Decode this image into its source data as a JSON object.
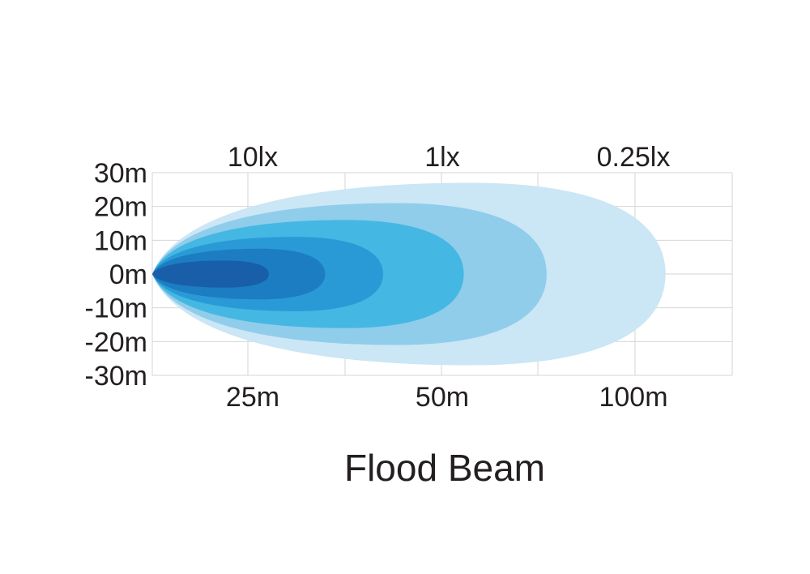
{
  "chart_data": {
    "type": "area",
    "title": "Flood Beam",
    "y_tick_labels": [
      "30m",
      "20m",
      "10m",
      "0m",
      "-10m",
      "-20m",
      "-30m"
    ],
    "x_tick_labels": [
      "25m",
      "50m",
      "100m"
    ],
    "lux_labels": [
      "10lx",
      "1lx",
      "0.25lx"
    ],
    "grid": true,
    "colors": {
      "grid": "#d6d6d6",
      "text": "#231f20",
      "background": "#ffffff"
    },
    "series": [
      {
        "reach_x_frac": 0.885,
        "half_width_m": 27,
        "color": "#cbe6f5"
      },
      {
        "reach_x_frac": 0.68,
        "half_width_m": 21,
        "color": "#8fcdeb"
      },
      {
        "reach_x_frac": 0.537,
        "half_width_m": 16,
        "color": "#45b7e3"
      },
      {
        "reach_x_frac": 0.398,
        "half_width_m": 11,
        "color": "#2a9ad6"
      },
      {
        "reach_x_frac": 0.298,
        "half_width_m": 7.5,
        "color": "#1c7dc3"
      },
      {
        "reach_x_frac": 0.201,
        "half_width_m": 4,
        "color": "#195ea8"
      }
    ]
  }
}
